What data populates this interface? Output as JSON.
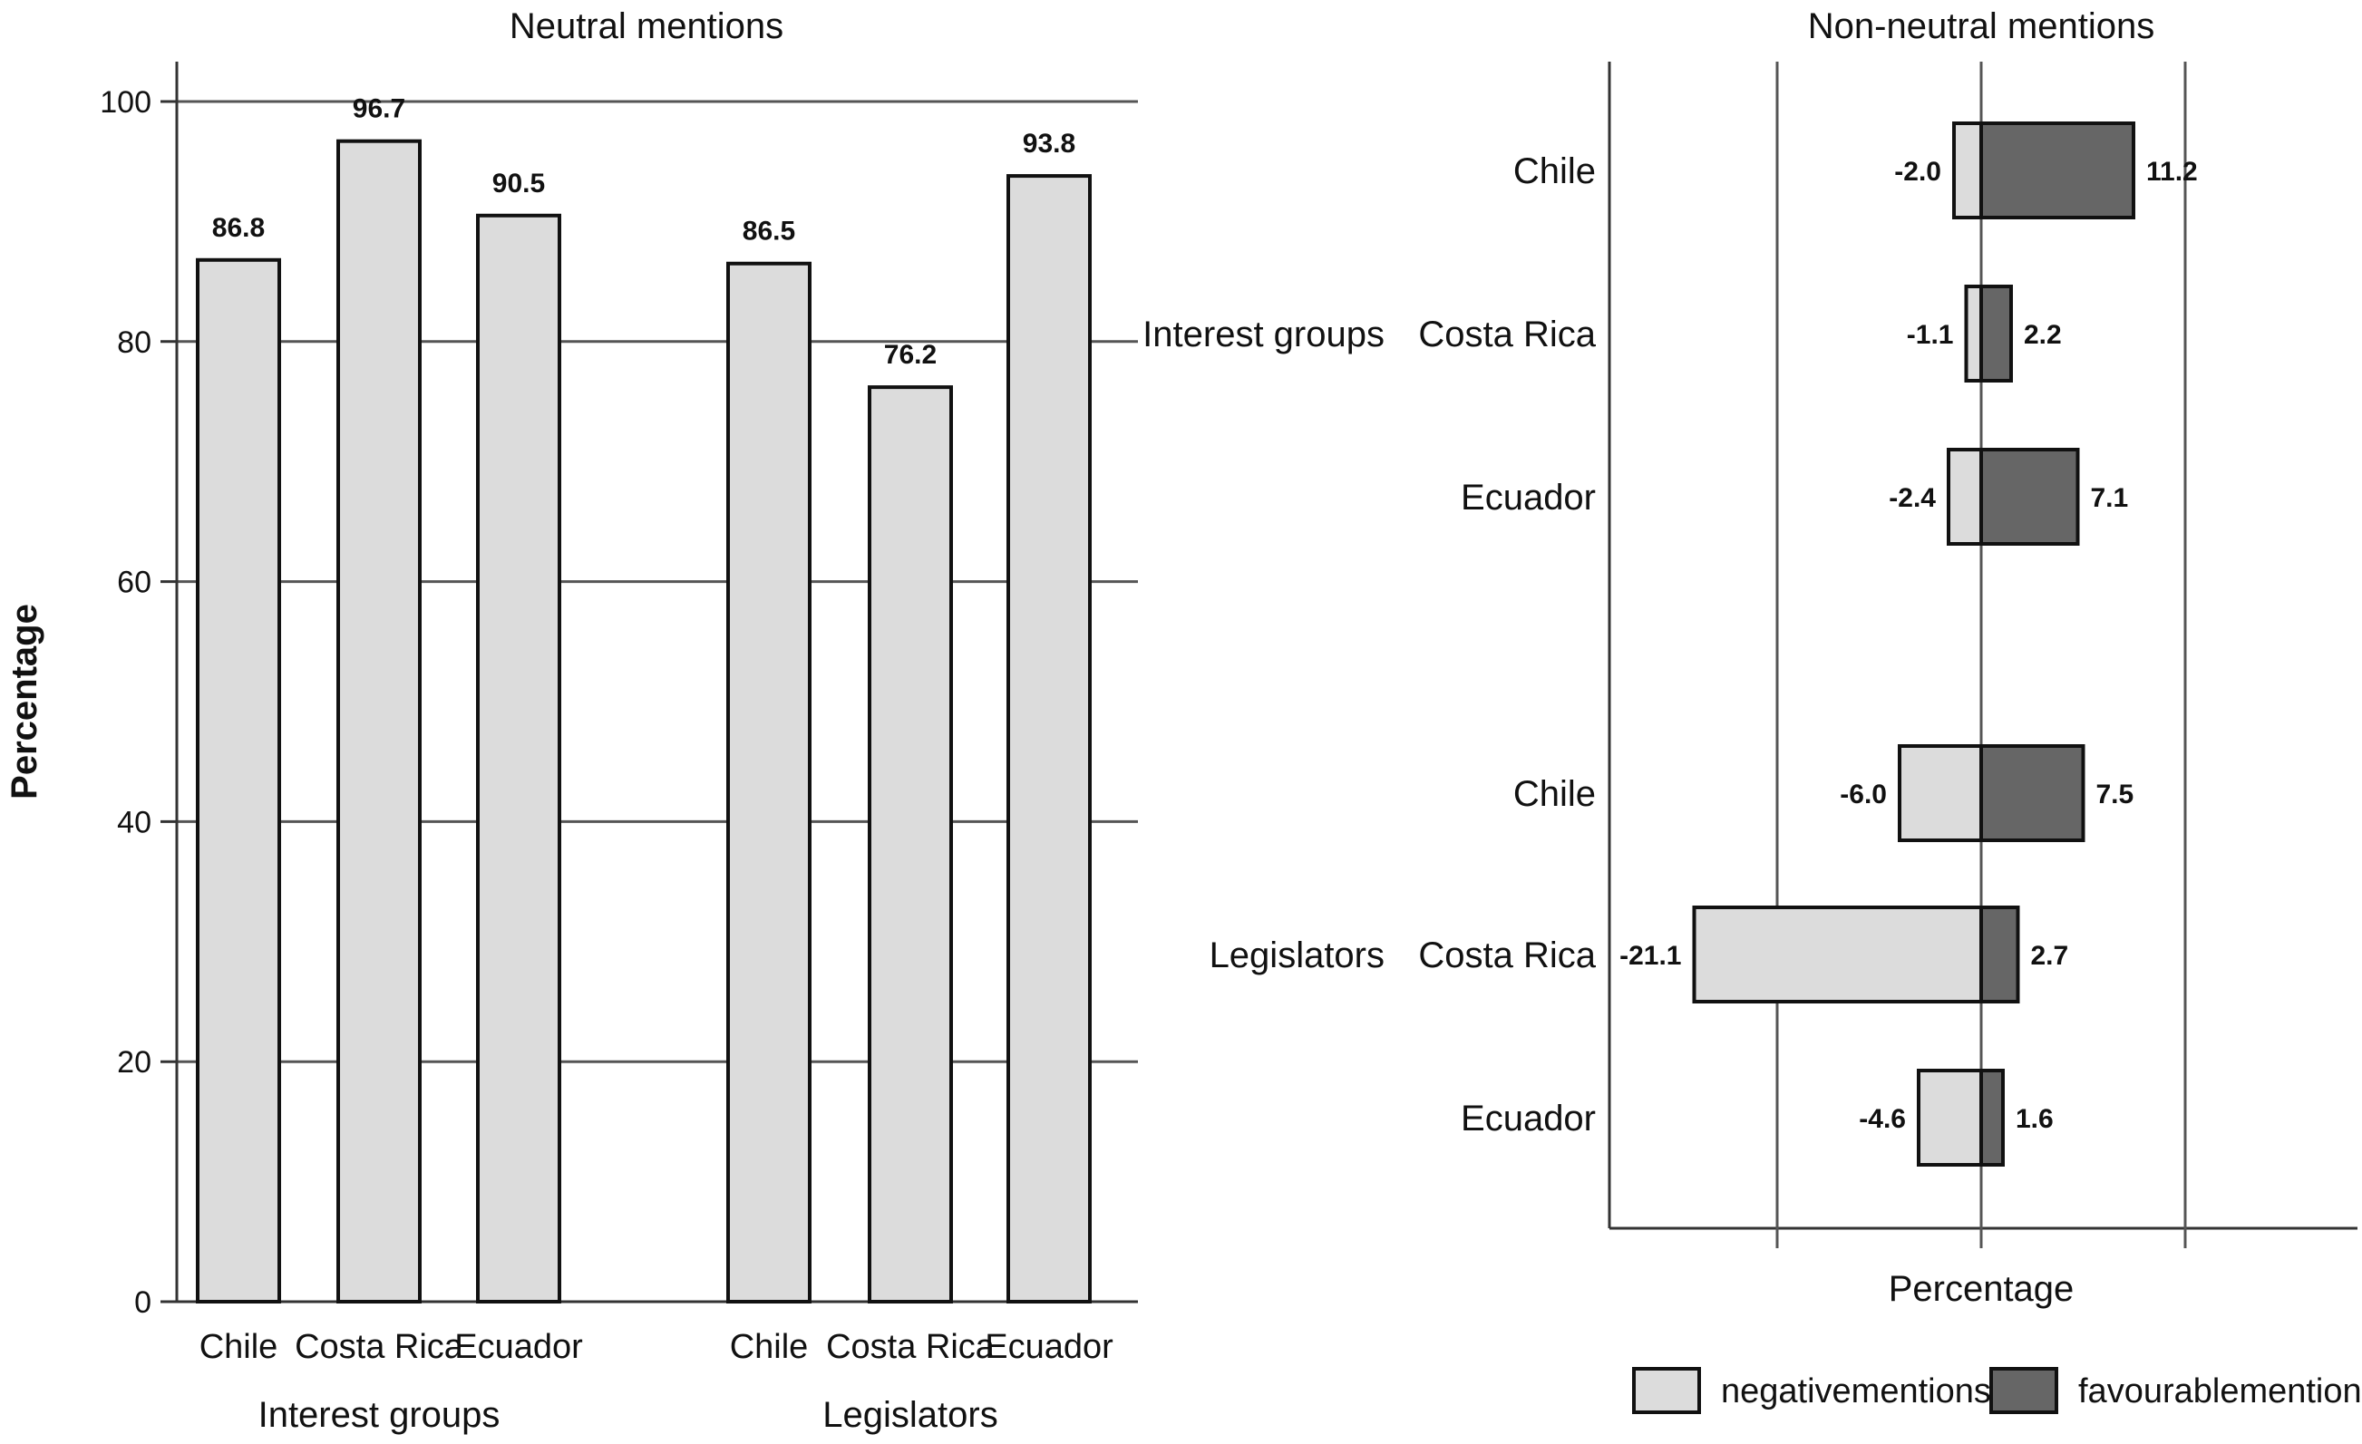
{
  "chart_data": [
    {
      "type": "bar",
      "title": "Neutral mentions",
      "ylabel": "Percentage",
      "ylim": [
        0,
        100
      ],
      "yticks": [
        "0",
        "20",
        "40",
        "60",
        "80",
        "100"
      ],
      "groups": [
        {
          "name": "Interest groups",
          "categories": [
            "Chile",
            "Costa Rica",
            "Ecuador"
          ],
          "values": [
            86.8,
            96.7,
            90.5
          ],
          "labels": [
            "86.8",
            "96.7",
            "90.5"
          ]
        },
        {
          "name": "Legislators",
          "categories": [
            "Chile",
            "Costa Rica",
            "Ecuador"
          ],
          "values": [
            86.5,
            76.2,
            93.8
          ],
          "labels": [
            "86.5",
            "76.2",
            "93.8"
          ]
        }
      ],
      "colors": {
        "bar": "#dcdcdc",
        "grid": "#555555"
      },
      "grid": true
    },
    {
      "type": "bar",
      "orientation": "horizontal",
      "stacked": "diverging",
      "title": "Non-neutral mentions",
      "xlabel": "Percentage",
      "rows": [
        {
          "group": "",
          "category": "Chile",
          "negative": -2.0,
          "favourable": 11.2,
          "neg_label": "-2.0",
          "fav_label": "11.2"
        },
        {
          "group": "Interest groups",
          "category": "Costa Rica",
          "negative": -1.1,
          "favourable": 2.2,
          "neg_label": "-1.1",
          "fav_label": "2.2"
        },
        {
          "group": "",
          "category": "Ecuador",
          "negative": -2.4,
          "favourable": 7.1,
          "neg_label": "-2.4",
          "fav_label": "7.1"
        },
        {
          "group": "",
          "category": "Chile",
          "negative": -6.0,
          "favourable": 7.5,
          "neg_label": "-6.0",
          "fav_label": "7.5"
        },
        {
          "group": "Legislators",
          "category": "Costa Rica",
          "negative": -21.1,
          "favourable": 2.7,
          "neg_label": "-21.1",
          "fav_label": "2.7"
        },
        {
          "group": "",
          "category": "Ecuador",
          "negative": -4.6,
          "favourable": 1.6,
          "neg_label": "-4.6",
          "fav_label": "1.6"
        }
      ],
      "legend": {
        "position": "bottom",
        "items": [
          {
            "label": "negativementions",
            "color": "#dcdcdc"
          },
          {
            "label": "favourablementions",
            "color": "#666666"
          }
        ]
      },
      "colors": {
        "negative": "#dcdcdc",
        "favourable": "#666666",
        "grid": "#555555"
      }
    }
  ]
}
